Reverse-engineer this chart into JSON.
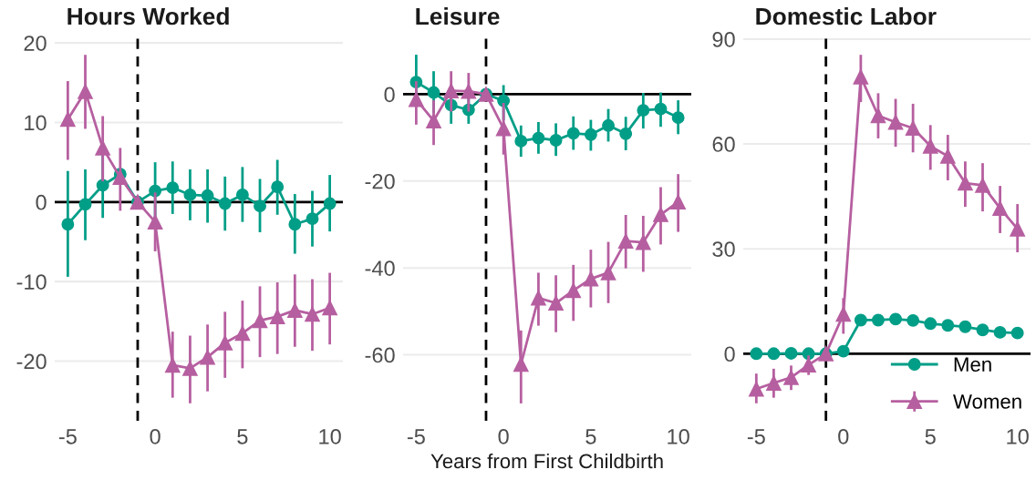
{
  "chart_data": [
    {
      "type": "line",
      "title": "Hours Worked",
      "x": [
        -5,
        -4,
        -3,
        -2,
        -1,
        0,
        1,
        2,
        3,
        4,
        5,
        6,
        7,
        8,
        9,
        10
      ],
      "xlim": [
        -5.75,
        10.75
      ],
      "xticks": [
        -5,
        0,
        5,
        10
      ],
      "ylim": [
        -27.5,
        20.7
      ],
      "yticks": [
        -20,
        -10,
        0,
        10,
        20
      ],
      "grid": "y",
      "ref_lines": [
        {
          "axis": "x",
          "value": -1,
          "color": "#000000",
          "line_style": "dashed"
        },
        {
          "axis": "y",
          "value": 0,
          "color": "#000000",
          "line_style": "solid"
        }
      ],
      "series": [
        {
          "color": "#009e87",
          "marker": "circle",
          "values": [
            -2.8,
            -0.3,
            2.1,
            3.5,
            0,
            1.4,
            1.8,
            0.9,
            0.8,
            -0.2,
            0.9,
            -0.5,
            1.9,
            -2.8,
            -2.1,
            -0.2
          ],
          "errors": [
            [
              -9.4,
              3.9
            ],
            [
              -4.8,
              4.1
            ],
            [
              -2.0,
              6.0
            ],
            null,
            null,
            [
              -2.2,
              5.0
            ],
            [
              -1.5,
              5.1
            ],
            [
              -2.3,
              4.1
            ],
            [
              -2.6,
              4.1
            ],
            [
              -3.6,
              3.2
            ],
            [
              -2.5,
              4.4
            ],
            [
              -3.8,
              2.9
            ],
            [
              -1.6,
              5.3
            ],
            [
              -6.5,
              1.0
            ],
            [
              -5.6,
              1.4
            ],
            [
              -3.7,
              3.4
            ]
          ]
        },
        {
          "color": "#b65fa0",
          "marker": "triangle",
          "values": [
            10.4,
            13.9,
            6.8,
            3.1,
            0,
            -2.5,
            -20.5,
            -20.9,
            -19.5,
            -17.7,
            -16.5,
            -14.9,
            -14.4,
            -13.6,
            -14.1,
            -13.3
          ],
          "errors": [
            [
              5.3,
              15.2
            ],
            [
              9.2,
              18.5
            ],
            [
              2.6,
              10.8
            ],
            [
              -1.1,
              6.8
            ],
            null,
            [
              -6.2,
              1.2
            ],
            [
              -24.6,
              -16.3
            ],
            [
              -25.3,
              -16.8
            ],
            [
              -23.8,
              -15.4
            ],
            [
              -22.1,
              -13.8
            ],
            [
              -20.9,
              -12.4
            ],
            [
              -19.5,
              -10.6
            ],
            [
              -19.1,
              -10.1
            ],
            [
              -18.2,
              -9.1
            ],
            [
              -18.7,
              -9.7
            ],
            [
              -17.9,
              -8.9
            ]
          ]
        }
      ]
    },
    {
      "type": "line",
      "title": "Leisure",
      "xlabel": "Years from First Childbirth",
      "x": [
        -5,
        -4,
        -3,
        -2,
        -1,
        0,
        1,
        2,
        3,
        4,
        5,
        6,
        7,
        8,
        9,
        10
      ],
      "xlim": [
        -5.75,
        10.75
      ],
      "xticks": [
        -5,
        0,
        5,
        10
      ],
      "ylim": [
        -75.2,
        13.1
      ],
      "yticks": [
        -60,
        -40,
        -20,
        0
      ],
      "grid": "y",
      "ref_lines": [
        {
          "axis": "x",
          "value": -1,
          "color": "#000000",
          "line_style": "dashed"
        },
        {
          "axis": "y",
          "value": 0,
          "color": "#000000",
          "line_style": "solid"
        }
      ],
      "series": [
        {
          "color": "#009e87",
          "marker": "circle",
          "values": [
            2.8,
            0.4,
            -2.5,
            -3.6,
            0,
            -1.5,
            -10.8,
            -10.1,
            -10.6,
            -9.0,
            -9.3,
            -7.2,
            -9.1,
            -3.7,
            -3.4,
            -5.4
          ],
          "errors": [
            [
              -2.8,
              9.1
            ],
            [
              -4.3,
              5.3
            ],
            [
              -6.8,
              2.2
            ],
            [
              -6.8,
              1.2
            ],
            null,
            [
              -6.0,
              2.1
            ],
            [
              -14.4,
              -7.2
            ],
            [
              -13.7,
              -6.4
            ],
            [
              -14.2,
              -6.7
            ],
            [
              -12.8,
              -5.1
            ],
            [
              -13.0,
              -5.9
            ],
            [
              -10.9,
              -3.4
            ],
            [
              -12.9,
              -5.2
            ],
            [
              -7.9,
              0.3
            ],
            [
              -7.5,
              0.4
            ],
            [
              -9.2,
              -1.4
            ]
          ]
        },
        {
          "color": "#b65fa0",
          "marker": "triangle",
          "values": [
            -1.2,
            -6.1,
            0.8,
            0.7,
            0,
            -7.9,
            -62.2,
            -46.9,
            -48.1,
            -45.2,
            -42.5,
            -41.1,
            -33.8,
            -34.1,
            -27.7,
            -24.8
          ],
          "errors": [
            [
              -7.0,
              3.0
            ],
            [
              -11.7,
              -1.4
            ],
            [
              -4.0,
              5.3
            ],
            [
              -4.0,
              4.9
            ],
            null,
            [
              -13.9,
              -2.0
            ],
            [
              -71.2,
              -54.4
            ],
            [
              -53.3,
              -41.1
            ],
            [
              -54.8,
              -41.7
            ],
            [
              -52.2,
              -39.3
            ],
            [
              -49.1,
              -35.8
            ],
            [
              -48.1,
              -34.0
            ],
            [
              -40.1,
              -27.8
            ],
            [
              -40.9,
              -28.0
            ],
            [
              -34.6,
              -21.4
            ],
            [
              -31.7,
              -18.4
            ]
          ]
        }
      ]
    },
    {
      "type": "line",
      "title": "Domestic Labor",
      "x": [
        -5,
        -4,
        -3,
        -2,
        -1,
        0,
        1,
        2,
        3,
        4,
        5,
        6,
        7,
        8,
        9,
        10
      ],
      "xlim": [
        -5.75,
        10.75
      ],
      "xticks": [
        -5,
        0,
        5,
        10
      ],
      "ylim": [
        -19.2,
        90.5
      ],
      "yticks": [
        0,
        30,
        60,
        90
      ],
      "grid": "y",
      "legend": "bottom right",
      "ref_lines": [
        {
          "axis": "x",
          "value": -1,
          "color": "#000000",
          "line_style": "dashed"
        },
        {
          "axis": "y",
          "value": 0,
          "color": "#000000",
          "line_style": "solid"
        }
      ],
      "series": [
        {
          "name": "Men",
          "color": "#009e87",
          "marker": "circle",
          "values": [
            0.0,
            0.0,
            0.1,
            0.0,
            0,
            0.7,
            9.6,
            9.6,
            9.9,
            9.5,
            8.6,
            8.1,
            7.7,
            6.8,
            6.1,
            5.9
          ]
        },
        {
          "name": "Women",
          "color": "#b65fa0",
          "marker": "triangle",
          "values": [
            -10.1,
            -8.4,
            -6.8,
            -3.2,
            0,
            11.3,
            79.2,
            68.1,
            66.2,
            64.5,
            59.4,
            56.5,
            48.8,
            48.2,
            41.6,
            35.7
          ],
          "errors": [
            [
              -14.2,
              -5.7
            ],
            [
              -12.6,
              -4.3
            ],
            [
              -10.4,
              -3.4
            ],
            [
              -6.1,
              -0.5
            ],
            null,
            [
              5.7,
              15.9
            ],
            [
              72.0,
              85.5
            ],
            [
              61.6,
              74.5
            ],
            [
              59.2,
              72.9
            ],
            [
              57.6,
              71.5
            ],
            [
              52.6,
              65.4
            ],
            [
              49.6,
              62.6
            ],
            [
              42.0,
              55.0
            ],
            [
              40.7,
              54.5
            ],
            [
              34.5,
              48.0
            ],
            [
              29.0,
              42.8
            ]
          ]
        }
      ]
    }
  ]
}
